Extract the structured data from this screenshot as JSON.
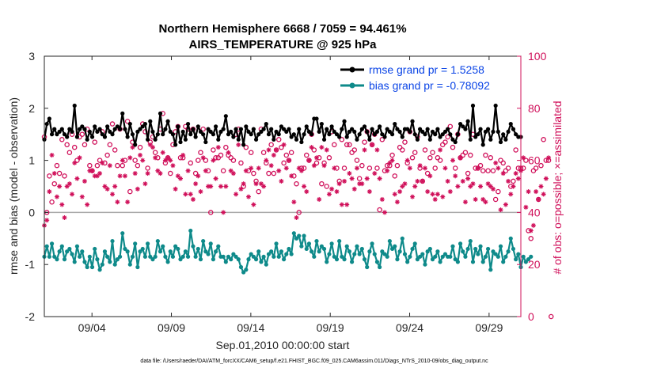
{
  "chart_data": {
    "type": "line",
    "title": "Northern Hemisphere 6668 / 7059 = 94.461%",
    "subtitle": "AIRS_TEMPERATURE @ 925 hPa",
    "xlabel": "Sep.01,2010 00:00:00 start",
    "ylabel_left": "rmse and bias (model - observation)",
    "ylabel_right": "# of obs: o=possible; ×=assimilated",
    "footer": "data file: /Users/raeder/DAI/ATM_forcXX/CAM6_setup/f.e21.FHIST_BGC.f09_025.CAM6assim.011/Diags_NTrS_2010-09/obs_diag_output.nc",
    "xlim": [
      1,
      31
    ],
    "ylim_left": [
      -2,
      3
    ],
    "ylim_right": [
      0,
      100
    ],
    "x_ticks": [
      4,
      9,
      14,
      19,
      24,
      29
    ],
    "x_tick_labels": [
      "09/04",
      "09/09",
      "09/14",
      "09/19",
      "09/24",
      "09/29"
    ],
    "y_ticks_left": [
      -2,
      -1,
      0,
      1,
      2,
      3
    ],
    "y_ticks_right": [
      0,
      20,
      40,
      60,
      80,
      100
    ],
    "colors": {
      "rmse": "#000000",
      "bias": "#0e8a8a",
      "obs": "#d0105a",
      "legend_text": "#0a44e6",
      "zero_line": "#aaaaaa"
    },
    "legend": [
      {
        "label": "rmse grand pr = 1.5258",
        "color": "#000000"
      },
      {
        "label": "bias grand pr = -0.78092",
        "color": "#0e8a8a"
      }
    ],
    "series": [
      {
        "name": "rmse",
        "axis": "left",
        "values": [
          1.4,
          1.7,
          1.8,
          1.5,
          1.6,
          1.5,
          1.55,
          1.6,
          1.5,
          1.45,
          1.6,
          1.55,
          2.05,
          1.45,
          1.6,
          1.65,
          1.6,
          1.4,
          1.55,
          1.45,
          1.65,
          1.55,
          1.6,
          1.5,
          1.45,
          1.65,
          1.55,
          1.5,
          1.6,
          1.65,
          1.6,
          1.9,
          1.6,
          1.45,
          1.7,
          1.5,
          1.3,
          1.55,
          1.6,
          1.65,
          1.7,
          1.4,
          1.75,
          1.55,
          1.4,
          1.5,
          1.9,
          1.5,
          1.6,
          1.75,
          1.55,
          1.5,
          1.3,
          1.65,
          1.35,
          1.55,
          1.4,
          1.7,
          1.5,
          1.6,
          1.45,
          1.65,
          1.55,
          1.5,
          1.35,
          1.6,
          1.55,
          1.5,
          1.65,
          1.4,
          1.55,
          1.6,
          1.85,
          1.5,
          1.55,
          1.45,
          1.6,
          1.4,
          1.6,
          1.3,
          1.65,
          1.55,
          1.5,
          1.6,
          1.4,
          1.5,
          1.55,
          1.6,
          1.7,
          1.5,
          1.6,
          1.4,
          1.55,
          1.5,
          1.65,
          1.6,
          1.55,
          1.6,
          1.45,
          1.5,
          1.4,
          1.6,
          1.35,
          1.5,
          1.65,
          1.55,
          1.5,
          1.8,
          1.8,
          1.55,
          1.7,
          1.4,
          1.6,
          1.5,
          1.65,
          1.55,
          1.5,
          1.45,
          1.6,
          1.75,
          1.45,
          1.55,
          1.6,
          1.55,
          1.4,
          1.5,
          1.6,
          1.65,
          1.55,
          1.4,
          1.6,
          1.5,
          1.55,
          1.65,
          1.5,
          1.45,
          1.6,
          1.55,
          1.5,
          1.7,
          1.6,
          1.55,
          1.45,
          1.6,
          1.6,
          1.55,
          1.75,
          1.5,
          1.4,
          1.6,
          1.55,
          1.5,
          1.6,
          1.4,
          1.55,
          1.5,
          1.6,
          1.45,
          1.5,
          1.55,
          1.6,
          1.5,
          1.4,
          1.35,
          1.5,
          1.7,
          1.65,
          1.6,
          1.75,
          1.4,
          2.05,
          1.45,
          1.5,
          1.6,
          1.3,
          1.55,
          1.6,
          1.4,
          1.55,
          2.05,
          1.55,
          1.35,
          1.5,
          1.4,
          1.55,
          1.7,
          1.6,
          1.5,
          1.45,
          1.45
        ]
      },
      {
        "name": "bias",
        "axis": "left",
        "values": [
          -0.85,
          -0.65,
          -0.85,
          -0.6,
          -0.85,
          -0.9,
          -0.75,
          -0.65,
          -0.9,
          -0.75,
          -0.7,
          -0.8,
          -0.95,
          -0.65,
          -0.85,
          -0.75,
          -0.95,
          -1.05,
          -0.85,
          -1.05,
          -0.7,
          -0.9,
          -1.1,
          -1.0,
          -0.75,
          -0.85,
          -0.95,
          -0.55,
          -1.0,
          -0.9,
          -0.85,
          -0.4,
          -0.7,
          -0.75,
          -1.0,
          -0.85,
          -0.6,
          -1.05,
          -0.75,
          -0.7,
          -0.85,
          -0.6,
          -0.85,
          -0.9,
          -0.85,
          -0.55,
          -0.75,
          -0.65,
          -0.85,
          -0.95,
          -0.75,
          -0.85,
          -0.65,
          -0.7,
          -0.9,
          -0.85,
          -0.75,
          -0.85,
          -0.35,
          -0.65,
          -0.85,
          -0.7,
          -0.9,
          -0.55,
          -0.75,
          -0.8,
          -0.6,
          -0.9,
          -0.75,
          -0.65,
          -0.85,
          -0.85,
          -0.95,
          -0.85,
          -0.9,
          -0.8,
          -0.85,
          -0.9,
          -1.05,
          -1.15,
          -1.1,
          -0.9,
          -0.8,
          -0.85,
          -0.9,
          -0.75,
          -0.95,
          -0.85,
          -1.0,
          -0.8,
          -0.75,
          -0.85,
          -0.6,
          -0.85,
          -0.75,
          -0.9,
          -0.8,
          -0.7,
          -0.8,
          -0.4,
          -0.5,
          -0.45,
          -0.65,
          -0.45,
          -0.7,
          -0.6,
          -0.75,
          -0.85,
          -0.55,
          -0.75,
          -0.65,
          -0.7,
          -0.95,
          -0.8,
          -0.6,
          -0.85,
          -0.9,
          -0.55,
          -0.85,
          -0.9,
          -0.65,
          -0.75,
          -0.95,
          -0.8,
          -0.65,
          -0.8,
          -0.7,
          -0.9,
          -1.05,
          -0.75,
          -0.6,
          -0.8,
          -0.95,
          -1.05,
          -0.75,
          -0.8,
          -0.85,
          -0.55,
          -0.7,
          -0.65,
          -0.9,
          -0.75,
          -0.5,
          -0.8,
          -0.95,
          -0.85,
          -0.7,
          -0.6,
          -0.9,
          -0.85,
          -0.8,
          -1.0,
          -0.75,
          -0.7,
          -0.9,
          -0.85,
          -0.75,
          -0.95,
          -0.85,
          -0.8,
          -0.85,
          -0.85,
          -0.65,
          -0.9,
          -0.95,
          -0.6,
          -0.75,
          -0.85,
          -0.7,
          -0.55,
          -0.95,
          -0.7,
          -0.8,
          -0.65,
          -0.95,
          -0.85,
          -0.7,
          -1.1,
          -0.75,
          -0.8,
          -0.85,
          -0.65,
          -0.95,
          -0.85,
          -0.75,
          -0.5,
          -0.7,
          -0.9,
          -0.8,
          -1.05,
          -0.85,
          -0.95,
          -0.9,
          -0.85
        ]
      },
      {
        "name": "obs possible",
        "axis": "right",
        "marker": "o",
        "values": [
          69,
          40,
          54,
          44,
          51,
          58,
          55,
          68,
          54,
          66,
          63,
          70,
          65,
          60,
          69,
          70,
          66,
          72,
          58,
          56,
          67,
          58,
          60,
          71,
          59,
          62,
          66,
          74,
          64,
          58,
          72,
          58,
          60,
          75,
          48,
          67,
          60,
          58,
          65,
          74,
          71,
          57,
          67,
          69,
          63,
          61,
          72,
          78,
          59,
          61,
          55,
          66,
          71,
          73,
          61,
          61,
          73,
          72,
          59,
          72,
          55,
          60,
          63,
          72,
          60,
          56,
          40,
          64,
          61,
          61,
          62,
          56,
          65,
          62,
          61,
          60,
          70,
          72,
          59,
          50,
          65,
          56,
          63,
          55,
          52,
          48,
          72,
          63,
          59,
          55,
          66,
          55,
          64,
          68,
          65,
          59,
          62,
          60,
          63,
          54,
          51,
          40,
          57,
          57,
          62,
          60,
          70,
          64,
          59,
          61,
          51,
          59,
          50,
          61,
          71,
          66,
          57,
          52,
          68,
          57,
          66,
          66,
          63,
          64,
          60,
          53,
          58,
          67,
          71,
          57,
          66,
          70,
          57,
          41,
          68,
          56,
          58,
          58,
          62,
          54,
          58,
          65,
          64,
          67,
          59,
          71,
          61,
          63,
          69,
          57,
          52,
          64,
          55,
          61,
          63,
          57,
          61,
          60,
          66,
          67,
          69,
          73,
          65,
          57,
          70,
          61,
          62,
          63,
          55,
          62,
          70,
          57,
          57,
          58,
          56,
          62,
          56,
          61,
          56,
          45,
          48,
          60,
          59,
          56,
          57,
          50,
          52,
          64,
          57,
          57,
          57,
          60,
          33,
          30,
          56,
          57,
          45,
          58,
          68,
          60,
          60,
          0
        ]
      },
      {
        "name": "obs assimilated",
        "axis": "right",
        "marker": "x",
        "values": [
          35,
          37,
          48,
          62,
          55,
          46,
          50,
          43,
          38,
          50,
          51,
          47,
          59,
          53,
          61,
          46,
          52,
          43,
          56,
          56,
          54,
          54,
          55,
          59,
          50,
          49,
          58,
          47,
          50,
          44,
          54,
          60,
          54,
          44,
          61,
          65,
          55,
          49,
          62,
          60,
          51,
          55,
          66,
          65,
          61,
          56,
          55,
          63,
          60,
          61,
          60,
          58,
          49,
          54,
          53,
          62,
          47,
          56,
          47,
          45,
          51,
          54,
          48,
          61,
          56,
          50,
          50,
          60,
          53,
          65,
          50,
          40,
          50,
          63,
          56,
          55,
          47,
          66,
          49,
          51,
          56,
          46,
          57,
          43,
          51,
          57,
          51,
          50,
          60,
          64,
          58,
          62,
          64,
          56,
          52,
          66,
          57,
          60,
          54,
          44,
          38,
          57,
          56,
          50,
          48,
          60,
          65,
          58,
          61,
          45,
          65,
          58,
          64,
          47,
          49,
          57,
          48,
          51,
          43,
          52,
          43,
          55,
          53,
          49,
          57,
          51,
          51,
          64,
          53,
          48,
          66,
          55,
          64,
          53,
          45,
          40,
          56,
          59,
          60,
          47,
          44,
          48,
          50,
          51,
          60,
          57,
          46,
          50,
          52,
          58,
          52,
          57,
          48,
          54,
          47,
          45,
          47,
          64,
          46,
          57,
          52,
          48,
          60,
          54,
          50,
          61,
          52,
          44,
          53,
          50,
          51,
          45,
          57,
          50,
          45,
          44,
          51,
          50,
          49,
          59,
          57,
          41,
          55,
          43,
          52,
          47,
          50,
          55,
          53,
          56,
          61,
          42,
          48,
          33,
          35,
          48,
          45,
          50,
          47,
          53,
          61
        ]
      }
    ]
  }
}
